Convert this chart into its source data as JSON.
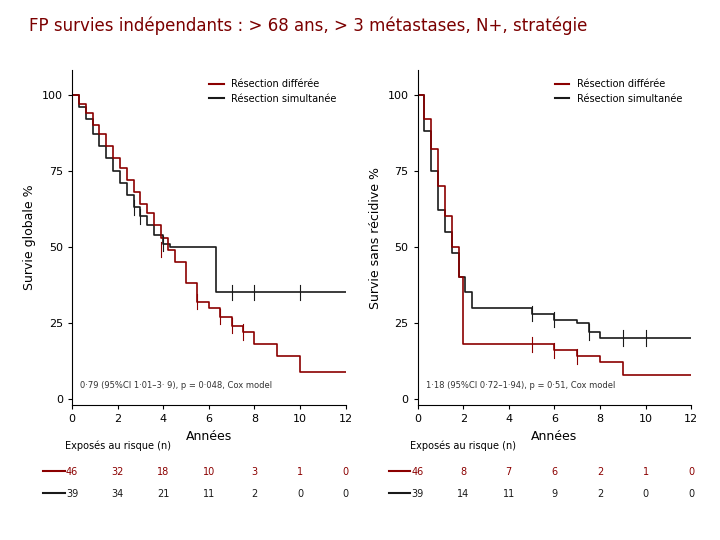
{
  "title": "FP survies indépendants : > 68 ans, > 3 métastases, N+, stratégie",
  "title_color": "#7B0000",
  "title_fontsize": 12,
  "left_ylabel": "Survie globale %",
  "right_ylabel": "Survie sans récidive %",
  "xlabel": "Années",
  "legend_text1": "Résection différée",
  "legend_text2": "Résection simultanée",
  "left_annotation": "0·79 (95%CI 1·01–3· 9), p = 0·048, Cox model",
  "right_annotation": "1·18 (95%CI 0·72–1·94), p = 0·51, Cox model",
  "risk_label": "Exposés au risque (n)",
  "left_risk_red": [
    46,
    32,
    18,
    10,
    3,
    1,
    0
  ],
  "left_risk_black": [
    39,
    34,
    21,
    11,
    2,
    0,
    0
  ],
  "right_risk_red": [
    46,
    8,
    7,
    6,
    2,
    1,
    0
  ],
  "right_risk_black": [
    39,
    14,
    11,
    9,
    2,
    0,
    0
  ],
  "color_red": "#8B0000",
  "color_black": "#1a1a1a",
  "left_red_x": [
    0,
    0.3,
    0.6,
    0.9,
    1.2,
    1.5,
    1.8,
    2.1,
    2.4,
    2.7,
    3.0,
    3.3,
    3.6,
    3.9,
    4.2,
    4.5,
    5.0,
    5.5,
    6.0,
    6.5,
    7.0,
    7.5,
    8.0,
    9.0,
    10.0,
    11.0,
    12.0
  ],
  "left_red_y": [
    100,
    97,
    94,
    90,
    87,
    83,
    79,
    76,
    72,
    68,
    64,
    61,
    57,
    53,
    49,
    45,
    38,
    32,
    30,
    27,
    24,
    22,
    18,
    14,
    9,
    9,
    9
  ],
  "left_black_x": [
    0,
    0.3,
    0.6,
    0.9,
    1.2,
    1.5,
    1.8,
    2.1,
    2.4,
    2.7,
    3.0,
    3.3,
    3.6,
    4.0,
    4.3,
    4.6,
    5.5,
    6.0,
    6.3,
    7.0,
    7.5,
    8.0,
    9.0,
    10.0,
    11.0,
    12.0
  ],
  "left_black_y": [
    100,
    96,
    92,
    87,
    83,
    79,
    75,
    71,
    67,
    63,
    60,
    57,
    54,
    51,
    50,
    50,
    50,
    50,
    35,
    35,
    35,
    35,
    35,
    35,
    35,
    35
  ],
  "right_red_x": [
    0,
    0.3,
    0.6,
    0.9,
    1.2,
    1.5,
    1.8,
    2.0,
    2.5,
    3.0,
    3.5,
    4.0,
    5.0,
    6.0,
    7.0,
    7.5,
    8.0,
    9.0,
    10.0,
    11.0,
    12.0
  ],
  "right_red_y": [
    100,
    92,
    82,
    70,
    60,
    50,
    40,
    18,
    18,
    18,
    18,
    18,
    18,
    16,
    14,
    14,
    12,
    8,
    8,
    8,
    8
  ],
  "right_black_x": [
    0,
    0.3,
    0.6,
    0.9,
    1.2,
    1.5,
    1.8,
    2.1,
    2.4,
    3.0,
    3.5,
    4.0,
    5.0,
    6.0,
    6.5,
    7.0,
    7.5,
    8.0,
    9.0,
    10.0,
    11.0,
    12.0
  ],
  "right_black_y": [
    100,
    88,
    75,
    62,
    55,
    48,
    40,
    35,
    30,
    30,
    30,
    30,
    28,
    26,
    26,
    25,
    22,
    20,
    20,
    20,
    20,
    20
  ],
  "yticks": [
    0,
    25,
    50,
    75,
    100
  ],
  "xticks": [
    0,
    2,
    4,
    6,
    8,
    10,
    12
  ],
  "xlim": [
    0,
    12
  ],
  "ylim": [
    -2,
    108
  ]
}
